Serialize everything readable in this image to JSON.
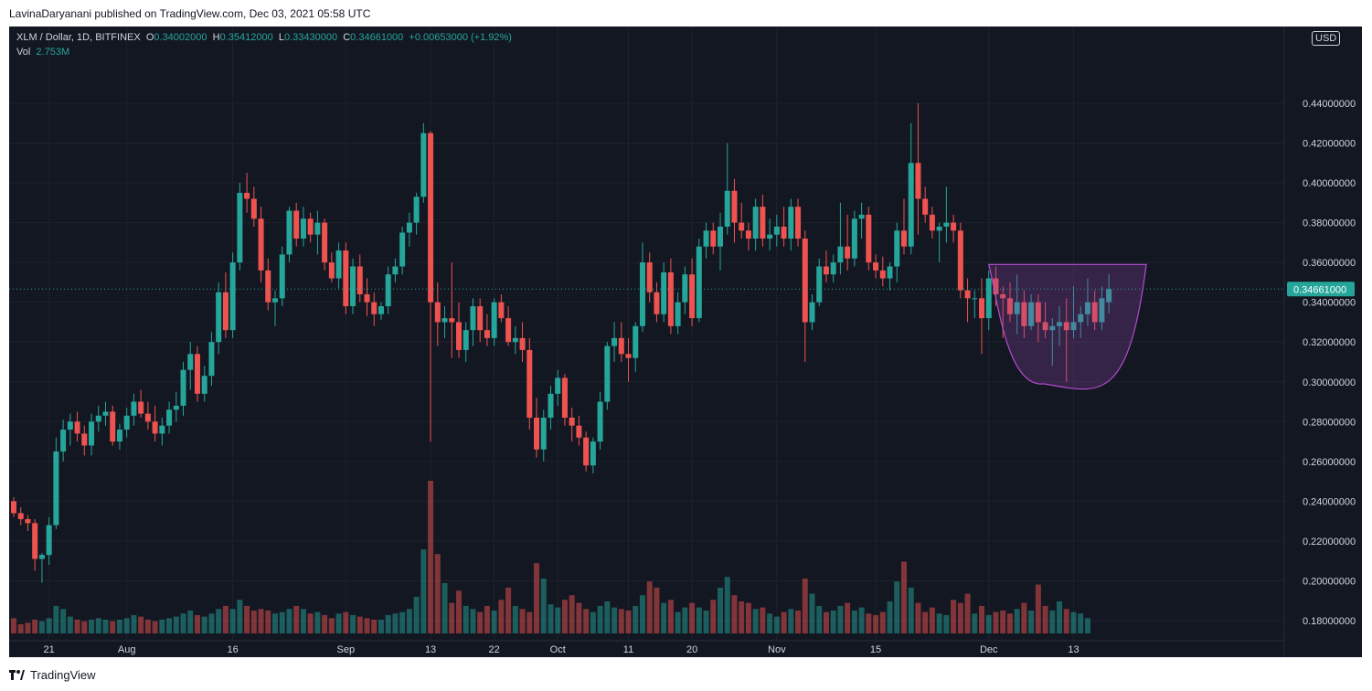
{
  "header": {
    "publisher_text": "LavinaDaryanani published on TradingView.com, Dec 03, 2021 05:58 UTC"
  },
  "legend": {
    "symbol": "XLM / Dollar, 1D, BITFINEX",
    "o_label": "O",
    "o_value": "0.34002000",
    "h_label": "H",
    "h_value": "0.35412000",
    "l_label": "L",
    "l_value": "0.33430000",
    "c_label": "C",
    "c_value": "0.34661000",
    "change": "+0.00653000 (+1.92%)",
    "vol_label": "Vol",
    "vol_value": "2.753M"
  },
  "currency": "USD",
  "footer": {
    "brand": "TradingView"
  },
  "colors": {
    "up": "#26a69a",
    "down": "#ef5350",
    "background": "#131722",
    "pattern_fill": "#8e44ad",
    "pattern_stroke": "#b24dcc"
  },
  "chart_data": {
    "type": "candlestick",
    "symbol": "XLM / Dollar",
    "interval": "1D",
    "ylim": [
      0.17,
      0.45
    ],
    "price_tick_labels": [
      "0.18000000",
      "0.20000000",
      "0.22000000",
      "0.24000000",
      "0.26000000",
      "0.28000000",
      "0.30000000",
      "0.32000000",
      "0.34000000",
      "0.36000000",
      "0.38000000",
      "0.40000000",
      "0.42000000",
      "0.44000000"
    ],
    "time_tick_labels": [
      {
        "label": "21",
        "index": 5
      },
      {
        "label": "Aug",
        "index": 16
      },
      {
        "label": "16",
        "index": 31
      },
      {
        "label": "Sep",
        "index": 47
      },
      {
        "label": "13",
        "index": 59
      },
      {
        "label": "22",
        "index": 68
      },
      {
        "label": "Oct",
        "index": 77
      },
      {
        "label": "11",
        "index": 87
      },
      {
        "label": "20",
        "index": 96
      },
      {
        "label": "Nov",
        "index": 108
      },
      {
        "label": "15",
        "index": 122
      },
      {
        "label": "Dec",
        "index": 138
      },
      {
        "label": "13",
        "index": 150
      }
    ],
    "last_price": 0.34661,
    "last_price_label": "0.34661000",
    "candles": [
      [
        0.24,
        0.242,
        0.232,
        0.234
      ],
      [
        0.234,
        0.237,
        0.228,
        0.231
      ],
      [
        0.231,
        0.233,
        0.225,
        0.229
      ],
      [
        0.229,
        0.231,
        0.205,
        0.211
      ],
      [
        0.211,
        0.214,
        0.199,
        0.213
      ],
      [
        0.213,
        0.232,
        0.208,
        0.228
      ],
      [
        0.228,
        0.272,
        0.226,
        0.265
      ],
      [
        0.265,
        0.281,
        0.26,
        0.276
      ],
      [
        0.276,
        0.284,
        0.268,
        0.28
      ],
      [
        0.28,
        0.285,
        0.27,
        0.274
      ],
      [
        0.274,
        0.278,
        0.263,
        0.268
      ],
      [
        0.268,
        0.284,
        0.263,
        0.28
      ],
      [
        0.28,
        0.288,
        0.275,
        0.283
      ],
      [
        0.283,
        0.29,
        0.278,
        0.285
      ],
      [
        0.285,
        0.288,
        0.268,
        0.27
      ],
      [
        0.27,
        0.279,
        0.266,
        0.276
      ],
      [
        0.276,
        0.287,
        0.272,
        0.283
      ],
      [
        0.283,
        0.294,
        0.278,
        0.29
      ],
      [
        0.29,
        0.296,
        0.282,
        0.284
      ],
      [
        0.284,
        0.29,
        0.276,
        0.28
      ],
      [
        0.28,
        0.288,
        0.27,
        0.274
      ],
      [
        0.274,
        0.282,
        0.268,
        0.278
      ],
      [
        0.278,
        0.29,
        0.274,
        0.286
      ],
      [
        0.286,
        0.295,
        0.28,
        0.288
      ],
      [
        0.288,
        0.31,
        0.283,
        0.306
      ],
      [
        0.306,
        0.32,
        0.296,
        0.314
      ],
      [
        0.314,
        0.318,
        0.29,
        0.294
      ],
      [
        0.294,
        0.308,
        0.29,
        0.303
      ],
      [
        0.303,
        0.325,
        0.298,
        0.32
      ],
      [
        0.32,
        0.35,
        0.314,
        0.345
      ],
      [
        0.345,
        0.355,
        0.322,
        0.326
      ],
      [
        0.326,
        0.365,
        0.322,
        0.36
      ],
      [
        0.36,
        0.4,
        0.356,
        0.395
      ],
      [
        0.395,
        0.405,
        0.385,
        0.392
      ],
      [
        0.392,
        0.398,
        0.378,
        0.382
      ],
      [
        0.382,
        0.388,
        0.35,
        0.356
      ],
      [
        0.356,
        0.362,
        0.336,
        0.34
      ],
      [
        0.34,
        0.346,
        0.328,
        0.342
      ],
      [
        0.342,
        0.368,
        0.338,
        0.364
      ],
      [
        0.364,
        0.388,
        0.36,
        0.386
      ],
      [
        0.386,
        0.39,
        0.368,
        0.372
      ],
      [
        0.372,
        0.388,
        0.368,
        0.382
      ],
      [
        0.382,
        0.385,
        0.37,
        0.374
      ],
      [
        0.374,
        0.386,
        0.364,
        0.38
      ],
      [
        0.38,
        0.382,
        0.356,
        0.36
      ],
      [
        0.36,
        0.365,
        0.35,
        0.352
      ],
      [
        0.352,
        0.37,
        0.347,
        0.366
      ],
      [
        0.366,
        0.37,
        0.334,
        0.338
      ],
      [
        0.338,
        0.362,
        0.334,
        0.358
      ],
      [
        0.358,
        0.364,
        0.34,
        0.344
      ],
      [
        0.344,
        0.352,
        0.333,
        0.34
      ],
      [
        0.34,
        0.345,
        0.328,
        0.334
      ],
      [
        0.334,
        0.34,
        0.331,
        0.338
      ],
      [
        0.338,
        0.358,
        0.334,
        0.354
      ],
      [
        0.354,
        0.362,
        0.35,
        0.358
      ],
      [
        0.358,
        0.378,
        0.354,
        0.375
      ],
      [
        0.375,
        0.385,
        0.368,
        0.38
      ],
      [
        0.38,
        0.395,
        0.374,
        0.393
      ],
      [
        0.393,
        0.43,
        0.39,
        0.425
      ],
      [
        0.425,
        0.426,
        0.27,
        0.34
      ],
      [
        0.34,
        0.35,
        0.318,
        0.33
      ],
      [
        0.33,
        0.338,
        0.322,
        0.332
      ],
      [
        0.332,
        0.36,
        0.312,
        0.33
      ],
      [
        0.33,
        0.34,
        0.312,
        0.316
      ],
      [
        0.316,
        0.33,
        0.31,
        0.326
      ],
      [
        0.326,
        0.342,
        0.318,
        0.338
      ],
      [
        0.338,
        0.342,
        0.32,
        0.326
      ],
      [
        0.326,
        0.334,
        0.318,
        0.322
      ],
      [
        0.322,
        0.342,
        0.318,
        0.34
      ],
      [
        0.34,
        0.344,
        0.33,
        0.332
      ],
      [
        0.332,
        0.338,
        0.318,
        0.32
      ],
      [
        0.32,
        0.328,
        0.314,
        0.322
      ],
      [
        0.322,
        0.33,
        0.31,
        0.316
      ],
      [
        0.316,
        0.322,
        0.276,
        0.282
      ],
      [
        0.282,
        0.292,
        0.262,
        0.266
      ],
      [
        0.266,
        0.286,
        0.26,
        0.282
      ],
      [
        0.282,
        0.298,
        0.276,
        0.294
      ],
      [
        0.294,
        0.306,
        0.288,
        0.302
      ],
      [
        0.302,
        0.304,
        0.278,
        0.282
      ],
      [
        0.282,
        0.287,
        0.27,
        0.278
      ],
      [
        0.278,
        0.283,
        0.268,
        0.272
      ],
      [
        0.272,
        0.275,
        0.255,
        0.258
      ],
      [
        0.258,
        0.272,
        0.254,
        0.27
      ],
      [
        0.27,
        0.295,
        0.266,
        0.29
      ],
      [
        0.29,
        0.32,
        0.286,
        0.318
      ],
      [
        0.318,
        0.33,
        0.31,
        0.322
      ],
      [
        0.322,
        0.33,
        0.31,
        0.314
      ],
      [
        0.314,
        0.322,
        0.3,
        0.312
      ],
      [
        0.312,
        0.33,
        0.305,
        0.328
      ],
      [
        0.328,
        0.37,
        0.325,
        0.36
      ],
      [
        0.36,
        0.365,
        0.34,
        0.345
      ],
      [
        0.345,
        0.35,
        0.33,
        0.334
      ],
      [
        0.334,
        0.36,
        0.33,
        0.355
      ],
      [
        0.355,
        0.362,
        0.324,
        0.328
      ],
      [
        0.328,
        0.345,
        0.324,
        0.34
      ],
      [
        0.34,
        0.358,
        0.334,
        0.354
      ],
      [
        0.354,
        0.362,
        0.328,
        0.332
      ],
      [
        0.332,
        0.372,
        0.33,
        0.368
      ],
      [
        0.368,
        0.38,
        0.362,
        0.376
      ],
      [
        0.376,
        0.38,
        0.364,
        0.368
      ],
      [
        0.368,
        0.385,
        0.356,
        0.378
      ],
      [
        0.378,
        0.42,
        0.374,
        0.396
      ],
      [
        0.396,
        0.402,
        0.37,
        0.38
      ],
      [
        0.38,
        0.39,
        0.372,
        0.376
      ],
      [
        0.376,
        0.38,
        0.366,
        0.372
      ],
      [
        0.372,
        0.392,
        0.366,
        0.388
      ],
      [
        0.388,
        0.394,
        0.368,
        0.372
      ],
      [
        0.372,
        0.382,
        0.366,
        0.374
      ],
      [
        0.374,
        0.384,
        0.368,
        0.378
      ],
      [
        0.378,
        0.388,
        0.368,
        0.372
      ],
      [
        0.372,
        0.392,
        0.366,
        0.388
      ],
      [
        0.388,
        0.392,
        0.368,
        0.372
      ],
      [
        0.372,
        0.376,
        0.31,
        0.33
      ],
      [
        0.33,
        0.344,
        0.326,
        0.34
      ],
      [
        0.34,
        0.362,
        0.338,
        0.358
      ],
      [
        0.358,
        0.366,
        0.35,
        0.354
      ],
      [
        0.354,
        0.364,
        0.35,
        0.36
      ],
      [
        0.36,
        0.39,
        0.354,
        0.368
      ],
      [
        0.368,
        0.384,
        0.356,
        0.362
      ],
      [
        0.362,
        0.386,
        0.358,
        0.382
      ],
      [
        0.382,
        0.39,
        0.372,
        0.384
      ],
      [
        0.384,
        0.388,
        0.356,
        0.36
      ],
      [
        0.36,
        0.364,
        0.352,
        0.356
      ],
      [
        0.356,
        0.363,
        0.348,
        0.352
      ],
      [
        0.352,
        0.36,
        0.346,
        0.358
      ],
      [
        0.358,
        0.38,
        0.35,
        0.376
      ],
      [
        0.376,
        0.392,
        0.364,
        0.368
      ],
      [
        0.368,
        0.43,
        0.364,
        0.41
      ],
      [
        0.41,
        0.44,
        0.374,
        0.392
      ],
      [
        0.392,
        0.398,
        0.38,
        0.384
      ],
      [
        0.384,
        0.388,
        0.372,
        0.376
      ],
      [
        0.376,
        0.38,
        0.36,
        0.378
      ],
      [
        0.378,
        0.398,
        0.37,
        0.38
      ],
      [
        0.38,
        0.384,
        0.37,
        0.376
      ],
      [
        0.376,
        0.38,
        0.342,
        0.346
      ],
      [
        0.346,
        0.352,
        0.33,
        0.342
      ],
      [
        0.342,
        0.346,
        0.332,
        0.342
      ],
      [
        0.342,
        0.352,
        0.314,
        0.332
      ],
      [
        0.332,
        0.356,
        0.326,
        0.352
      ],
      [
        0.352,
        0.358,
        0.338,
        0.344
      ],
      [
        0.344,
        0.348,
        0.322,
        0.342
      ],
      [
        0.342,
        0.35,
        0.33,
        0.334
      ],
      [
        0.334,
        0.354,
        0.324,
        0.34
      ],
      [
        0.34,
        0.346,
        0.322,
        0.328
      ],
      [
        0.328,
        0.344,
        0.326,
        0.34
      ],
      [
        0.34,
        0.344,
        0.32,
        0.33
      ],
      [
        0.33,
        0.34,
        0.322,
        0.326
      ],
      [
        0.326,
        0.332,
        0.308,
        0.328
      ],
      [
        0.328,
        0.338,
        0.318,
        0.33
      ],
      [
        0.33,
        0.342,
        0.3,
        0.326
      ],
      [
        0.326,
        0.348,
        0.322,
        0.33
      ],
      [
        0.33,
        0.338,
        0.322,
        0.334
      ],
      [
        0.334,
        0.352,
        0.328,
        0.34
      ],
      [
        0.34,
        0.346,
        0.326,
        0.33
      ],
      [
        0.33,
        0.348,
        0.326,
        0.342
      ],
      [
        0.34002,
        0.35412,
        0.3343,
        0.34661
      ]
    ],
    "volume_relative": [
      0.1,
      0.06,
      0.07,
      0.09,
      0.08,
      0.1,
      0.18,
      0.16,
      0.11,
      0.09,
      0.08,
      0.09,
      0.1,
      0.09,
      0.08,
      0.09,
      0.1,
      0.12,
      0.11,
      0.09,
      0.08,
      0.09,
      0.1,
      0.11,
      0.13,
      0.15,
      0.12,
      0.11,
      0.13,
      0.16,
      0.18,
      0.16,
      0.22,
      0.18,
      0.15,
      0.16,
      0.15,
      0.13,
      0.14,
      0.16,
      0.18,
      0.16,
      0.13,
      0.14,
      0.12,
      0.1,
      0.13,
      0.14,
      0.12,
      0.11,
      0.1,
      0.09,
      0.09,
      0.12,
      0.13,
      0.14,
      0.16,
      0.24,
      0.55,
      1.0,
      0.52,
      0.33,
      0.2,
      0.28,
      0.18,
      0.16,
      0.14,
      0.18,
      0.15,
      0.22,
      0.3,
      0.18,
      0.16,
      0.14,
      0.46,
      0.36,
      0.19,
      0.17,
      0.22,
      0.25,
      0.2,
      0.16,
      0.14,
      0.18,
      0.21,
      0.17,
      0.16,
      0.15,
      0.18,
      0.25,
      0.34,
      0.3,
      0.2,
      0.22,
      0.14,
      0.17,
      0.2,
      0.17,
      0.15,
      0.22,
      0.3,
      0.37,
      0.25,
      0.21,
      0.2,
      0.16,
      0.17,
      0.13,
      0.11,
      0.14,
      0.16,
      0.15,
      0.36,
      0.26,
      0.18,
      0.14,
      0.15,
      0.18,
      0.2,
      0.15,
      0.17,
      0.13,
      0.12,
      0.14,
      0.21,
      0.34,
      0.47,
      0.3,
      0.2,
      0.14,
      0.17,
      0.13,
      0.12,
      0.22,
      0.2,
      0.26,
      0.13,
      0.18,
      0.12,
      0.14,
      0.15,
      0.13,
      0.16,
      0.2,
      0.15,
      0.32,
      0.18,
      0.15,
      0.21,
      0.16,
      0.14,
      0.13,
      0.1
    ],
    "pattern": {
      "type": "cup",
      "rim_price": 0.359,
      "bottom_price": 0.299,
      "start_index": 138,
      "end_index": 159
    }
  }
}
